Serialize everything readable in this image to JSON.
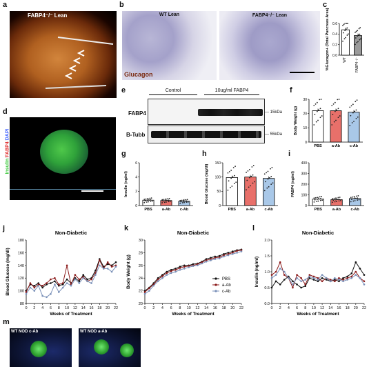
{
  "panel_letters": {
    "a": "a",
    "b": "b",
    "c": "c",
    "d": "d",
    "e": "e",
    "f": "f",
    "g": "g",
    "h": "h",
    "i": "i",
    "j": "j",
    "k": "k",
    "l": "l",
    "m": "m"
  },
  "a": {
    "title": "FABP4⁻/⁻ Lean"
  },
  "b": {
    "wt_title": "WT Lean",
    "ko_title": "FABP4⁻/⁻ Lean",
    "stain": "Glucagon"
  },
  "c": {
    "ylabel": "%Glucagon+ (Total Pancreas Area)",
    "yticks": [
      "0.0",
      "0.2",
      "0.4",
      "0.6"
    ],
    "categories": [
      "WT",
      "FABP4⁻/⁻"
    ]
  },
  "d": {
    "stain_insulin": "Insulin",
    "stain_fabp4": "FABP4",
    "stain_dapi": "DAPI"
  },
  "e": {
    "control": "Control",
    "treatment": "10ug/ml FABP4",
    "band1": "FABP4",
    "band2": "B-Tubb",
    "kda1": "15kDa",
    "kda2": "55kDa"
  },
  "f": {
    "ylabel": "Body Weight (g)",
    "yticks": [
      "0",
      "10",
      "20",
      "30"
    ]
  },
  "g": {
    "ylabel": "Insulin (ng/ml)",
    "yticks": [
      "0",
      "2",
      "4",
      "6"
    ]
  },
  "h": {
    "ylabel": "Blood Glucose (mg/dl)",
    "yticks": [
      "0",
      "50",
      "100",
      "150"
    ]
  },
  "i": {
    "ylabel": "FABP4 (ng/ml)",
    "yticks": [
      "0",
      "100",
      "200",
      "300",
      "400"
    ]
  },
  "group_labels": [
    "PBS",
    "a-Ab",
    "c-Ab"
  ],
  "j": {
    "title": "Non-Diabetic",
    "ylabel": "Blood Glucose (mg/dl)",
    "xlabel": "Weeks of Treatment",
    "yticks": [
      "80",
      "100",
      "120",
      "140",
      "160",
      "180"
    ]
  },
  "k": {
    "title": "Non-Diabetic",
    "ylabel": "Body Weight (g)",
    "xlabel": "Weeks of Treatment",
    "yticks": [
      "20",
      "22",
      "24",
      "26",
      "28",
      "30"
    ]
  },
  "l": {
    "title": "Non-Diabetic",
    "ylabel": "Insulin (ng/ml)",
    "xlabel": "Weeks of Treatment",
    "yticks": [
      "0.0",
      "0.5",
      "1.0",
      "1.5",
      "2.0"
    ]
  },
  "legend": [
    "PBS",
    "a-Ab",
    "c-Ab"
  ],
  "m": {
    "left": "WT NOD c-Ab",
    "right": "WT NOD a-Ab"
  },
  "week_ticks": [
    "0",
    "2",
    "4",
    "6",
    "8",
    "10",
    "12",
    "14",
    "16",
    "18",
    "20",
    "22"
  ],
  "colors": {
    "pbs": "#ffffff",
    "aab": "#e8706a",
    "cab": "#a9c8e8",
    "pbs_line": "#111111",
    "aab_line": "#8b1a1a",
    "cab_line": "#7a90b8"
  },
  "chart_data": [
    {
      "type": "bar",
      "id": "c",
      "categories": [
        "WT",
        "FABP4⁻/⁻"
      ],
      "values": [
        0.48,
        0.37
      ],
      "ylim": [
        0,
        0.6
      ],
      "ylabel": "%Glucagon+ (Total Pancreas Area)"
    },
    {
      "type": "bar",
      "id": "f",
      "categories": [
        "PBS",
        "a-Ab",
        "c-Ab"
      ],
      "values": [
        22,
        22,
        21
      ],
      "ylim": [
        0,
        30
      ],
      "ylabel": "Body Weight (g)"
    },
    {
      "type": "bar",
      "id": "g",
      "categories": [
        "PBS",
        "a-Ab",
        "c-Ab"
      ],
      "values": [
        0.75,
        0.7,
        0.6
      ],
      "ylim": [
        0,
        6
      ],
      "ylabel": "Insulin (ng/ml)"
    },
    {
      "type": "bar",
      "id": "h",
      "categories": [
        "PBS",
        "a-Ab",
        "c-Ab"
      ],
      "values": [
        98,
        100,
        95
      ],
      "ylim": [
        0,
        150
      ],
      "ylabel": "Blood Glucose (mg/dl)"
    },
    {
      "type": "bar",
      "id": "i",
      "categories": [
        "PBS",
        "a-Ab",
        "c-Ab"
      ],
      "values": [
        60,
        55,
        65
      ],
      "ylim": [
        0,
        400
      ],
      "ylabel": "FABP4 (ng/ml)"
    },
    {
      "type": "line",
      "id": "j",
      "x": [
        0,
        1,
        2,
        3,
        4,
        5,
        6,
        7,
        8,
        9,
        10,
        11,
        12,
        13,
        14,
        15,
        16,
        17,
        18,
        19,
        20,
        21,
        22
      ],
      "xlim": [
        0,
        22
      ],
      "ylim": [
        80,
        180
      ],
      "xlabel": "Weeks of Treatment",
      "ylabel": "Blood Glucose (mg/dl)",
      "series": [
        {
          "name": "PBS",
          "values": [
            100,
            110,
            108,
            112,
            105,
            110,
            112,
            115,
            108,
            110,
            118,
            112,
            120,
            115,
            125,
            118,
            120,
            132,
            150,
            138,
            142,
            140,
            145
          ]
        },
        {
          "name": "a-Ab",
          "values": [
            98,
            112,
            105,
            110,
            108,
            112,
            118,
            120,
            110,
            112,
            140,
            110,
            125,
            118,
            122,
            115,
            118,
            128,
            148,
            135,
            145,
            138,
            140
          ]
        },
        {
          "name": "c-Ab",
          "values": [
            95,
            105,
            100,
            108,
            92,
            90,
            95,
            110,
            98,
            105,
            112,
            108,
            118,
            112,
            120,
            115,
            112,
            125,
            140,
            135,
            135,
            130,
            138
          ]
        }
      ]
    },
    {
      "type": "line",
      "id": "k",
      "x": [
        0,
        1,
        2,
        3,
        4,
        5,
        6,
        7,
        8,
        9,
        10,
        11,
        12,
        13,
        14,
        15,
        16,
        17,
        18,
        19,
        20,
        21,
        22
      ],
      "xlim": [
        0,
        22
      ],
      "ylim": [
        20,
        30
      ],
      "xlabel": "Weeks of Treatment",
      "ylabel": "Body Weight (g)",
      "series": [
        {
          "name": "PBS",
          "values": [
            22,
            22.5,
            23.2,
            24,
            24.5,
            25,
            25.3,
            25.5,
            25.8,
            26,
            26,
            26.2,
            26.3,
            26.6,
            27,
            27.2,
            27.4,
            27.5,
            27.8,
            28,
            28.2,
            28.4,
            28.5
          ]
        },
        {
          "name": "a-Ab",
          "values": [
            21.8,
            22.4,
            23,
            23.8,
            24.3,
            24.8,
            25.1,
            25.3,
            25.6,
            25.8,
            25.9,
            26,
            26.2,
            26.5,
            26.8,
            27,
            27.2,
            27.3,
            27.6,
            27.8,
            28,
            28.3,
            28.4
          ]
        },
        {
          "name": "c-Ab",
          "values": [
            21.5,
            22,
            22.8,
            23.5,
            24,
            24.5,
            24.8,
            25,
            25.3,
            25.5,
            25.7,
            25.9,
            26,
            26.3,
            26.6,
            26.8,
            27,
            27.1,
            27.4,
            27.6,
            27.8,
            28,
            28.2
          ]
        }
      ]
    },
    {
      "type": "line",
      "id": "l",
      "x": [
        0,
        1,
        2,
        3,
        4,
        5,
        6,
        7,
        8,
        9,
        10,
        11,
        12,
        13,
        14,
        15,
        16,
        17,
        18,
        19,
        20,
        21,
        22
      ],
      "xlim": [
        0,
        22
      ],
      "ylim": [
        0,
        2
      ],
      "xlabel": "Weeks of Treatment",
      "ylabel": "Insulin (ng/ml)",
      "series": [
        {
          "name": "PBS",
          "values": [
            0.5,
            0.7,
            0.6,
            0.75,
            0.85,
            0.7,
            0.6,
            0.5,
            0.55,
            0.8,
            0.75,
            0.7,
            0.8,
            0.75,
            0.7,
            0.75,
            0.7,
            0.8,
            0.85,
            0.95,
            1.3,
            1.1,
            0.9
          ]
        },
        {
          "name": "a-Ab",
          "values": [
            0.9,
            1.0,
            1.3,
            0.9,
            0.8,
            0.5,
            0.9,
            0.8,
            0.6,
            0.9,
            0.85,
            0.8,
            0.7,
            0.8,
            0.75,
            0.7,
            0.8,
            0.75,
            0.8,
            0.85,
            1.0,
            0.8,
            0.7
          ]
        },
        {
          "name": "c-Ab",
          "values": [
            0.8,
            0.9,
            1.1,
            1.0,
            0.8,
            0.6,
            0.8,
            0.7,
            0.75,
            0.85,
            0.8,
            0.75,
            0.9,
            0.8,
            0.7,
            0.8,
            0.75,
            0.7,
            0.75,
            0.8,
            0.9,
            0.8,
            0.6
          ]
        }
      ]
    }
  ]
}
